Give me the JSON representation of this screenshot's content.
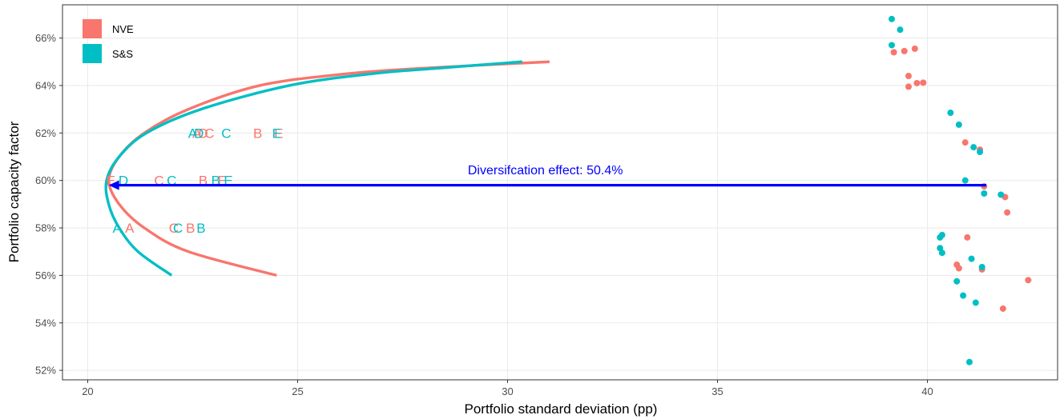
{
  "chart_data": {
    "type": "scatter",
    "title": "",
    "xlabel": "Portfolio standard deviation (pp)",
    "ylabel": "Portfolio capacity factor",
    "xlim": [
      19.4,
      43.1
    ],
    "ylim": [
      51.6,
      67.4
    ],
    "x_ticks": [
      20,
      25,
      30,
      35,
      40
    ],
    "x_tick_labels": [
      "20",
      "25",
      "30",
      "35",
      "40"
    ],
    "y_ticks": [
      52,
      54,
      56,
      58,
      60,
      62,
      64,
      66
    ],
    "y_tick_labels": [
      "52%",
      "54%",
      "56%",
      "58%",
      "60%",
      "62%",
      "64%",
      "66%"
    ],
    "grid": true,
    "legend_position": "top-left",
    "series": [
      {
        "name": "NVE",
        "color": "#F8766D",
        "frontier": [
          [
            24.5,
            56.0
          ],
          [
            22.4,
            57.0
          ],
          [
            21.35,
            58.0
          ],
          [
            20.75,
            59.0
          ],
          [
            20.5,
            60.0
          ],
          [
            20.75,
            61.0
          ],
          [
            21.35,
            62.0
          ],
          [
            22.4,
            63.0
          ],
          [
            24.1,
            64.0
          ],
          [
            26.2,
            64.5
          ],
          [
            28.2,
            64.75
          ],
          [
            31.0,
            65.0
          ]
        ],
        "points": [
          [
            39.2,
            65.4
          ],
          [
            39.45,
            65.45
          ],
          [
            39.7,
            65.55
          ],
          [
            39.55,
            64.4
          ],
          [
            39.75,
            64.1
          ],
          [
            39.9,
            64.12
          ],
          [
            39.55,
            63.95
          ],
          [
            40.9,
            61.6
          ],
          [
            41.25,
            61.3
          ],
          [
            41.35,
            59.75
          ],
          [
            41.85,
            59.3
          ],
          [
            41.9,
            58.65
          ],
          [
            40.95,
            57.6
          ],
          [
            40.7,
            56.45
          ],
          [
            40.75,
            56.3
          ],
          [
            41.3,
            56.25
          ],
          [
            42.4,
            55.8
          ],
          [
            41.8,
            54.6
          ]
        ]
      },
      {
        "name": "S&S",
        "color": "#00BFC4",
        "frontier": [
          [
            22.0,
            56.0
          ],
          [
            21.2,
            57.0
          ],
          [
            20.75,
            58.0
          ],
          [
            20.5,
            59.0
          ],
          [
            20.45,
            60.0
          ],
          [
            20.75,
            61.0
          ],
          [
            21.4,
            62.0
          ],
          [
            22.7,
            63.0
          ],
          [
            24.8,
            64.0
          ],
          [
            26.8,
            64.5
          ],
          [
            28.5,
            64.75
          ],
          [
            30.35,
            65.0
          ]
        ],
        "points": [
          [
            39.15,
            66.8
          ],
          [
            39.35,
            66.35
          ],
          [
            39.15,
            65.7
          ],
          [
            40.55,
            62.85
          ],
          [
            40.75,
            62.35
          ],
          [
            41.1,
            61.4
          ],
          [
            41.25,
            61.2
          ],
          [
            41.75,
            59.4
          ],
          [
            41.35,
            59.45
          ],
          [
            40.9,
            60.0
          ],
          [
            40.3,
            57.6
          ],
          [
            40.35,
            57.7
          ],
          [
            40.3,
            57.15
          ],
          [
            40.35,
            56.95
          ],
          [
            41.05,
            56.7
          ],
          [
            41.3,
            56.35
          ],
          [
            40.7,
            55.75
          ],
          [
            40.85,
            55.15
          ],
          [
            41.15,
            54.85
          ],
          [
            41.0,
            52.35
          ]
        ]
      }
    ],
    "letter_labels": [
      {
        "series": "NVE",
        "text": "A",
        "x": 22.6,
        "y": 62.0
      },
      {
        "series": "NVE",
        "text": "D",
        "x": 22.75,
        "y": 62.0
      },
      {
        "series": "NVE",
        "text": "C",
        "x": 22.9,
        "y": 62.0
      },
      {
        "series": "NVE",
        "text": "B",
        "x": 24.05,
        "y": 62.0
      },
      {
        "series": "NVE",
        "text": "E",
        "x": 24.55,
        "y": 62.0
      },
      {
        "series": "S&S",
        "text": "A",
        "x": 22.5,
        "y": 62.0
      },
      {
        "series": "S&S",
        "text": "D",
        "x": 22.65,
        "y": 62.0
      },
      {
        "series": "S&S",
        "text": "C",
        "x": 23.3,
        "y": 62.0
      },
      {
        "series": "S&S",
        "text": "E",
        "x": 24.5,
        "y": 62.0
      },
      {
        "series": "NVE",
        "text": "E",
        "x": 20.55,
        "y": 60.0
      },
      {
        "series": "NVE",
        "text": "C",
        "x": 21.7,
        "y": 60.0
      },
      {
        "series": "NVE",
        "text": "B",
        "x": 22.75,
        "y": 60.0
      },
      {
        "series": "NVE",
        "text": "E",
        "x": 23.2,
        "y": 60.0
      },
      {
        "series": "S&S",
        "text": "D",
        "x": 20.85,
        "y": 60.0
      },
      {
        "series": "S&S",
        "text": "C",
        "x": 22.0,
        "y": 60.0
      },
      {
        "series": "S&S",
        "text": "B",
        "x": 23.05,
        "y": 60.0
      },
      {
        "series": "S&S",
        "text": "E",
        "x": 23.35,
        "y": 60.0
      },
      {
        "series": "NVE",
        "text": "A",
        "x": 21.0,
        "y": 58.0
      },
      {
        "series": "NVE",
        "text": "C",
        "x": 22.05,
        "y": 58.0
      },
      {
        "series": "NVE",
        "text": "B",
        "x": 22.45,
        "y": 58.0
      },
      {
        "series": "S&S",
        "text": "A",
        "x": 20.7,
        "y": 58.0
      },
      {
        "series": "S&S",
        "text": "C",
        "x": 22.15,
        "y": 58.0
      },
      {
        "series": "S&S",
        "text": "B",
        "x": 22.7,
        "y": 58.0
      }
    ],
    "annotation": {
      "text": "Diversifcation effect: 50.4%",
      "color": "#0000FF",
      "arrow_from": [
        41.4,
        59.8
      ],
      "arrow_to": [
        20.5,
        59.8
      ],
      "label_x": 30.9,
      "label_y": 60.25
    }
  }
}
